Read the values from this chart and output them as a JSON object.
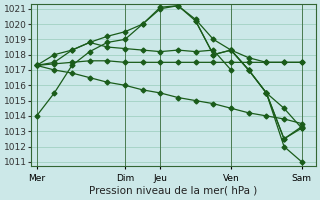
{
  "background_color": "#cce8e8",
  "grid_color": "#99ccbb",
  "line_color": "#1a5c1a",
  "ylabel_min": 1011,
  "ylabel_max": 1021,
  "xlabel": "Pression niveau de la mer( hPa )",
  "xtick_labels": [
    "Mer",
    "Dim",
    "Jeu",
    "Ven",
    "Sam"
  ],
  "xtick_positions": [
    0,
    5,
    7,
    11,
    15
  ],
  "vert_lines_x": [
    0,
    5,
    7,
    11,
    15
  ],
  "xlim": [
    -0.3,
    15.8
  ],
  "series": [
    {
      "x": [
        0,
        1,
        2,
        3,
        4,
        5,
        6,
        7,
        8,
        9,
        10,
        11,
        12,
        13,
        14,
        15
      ],
      "y": [
        1017.3,
        1017.4,
        1017.5,
        1017.6,
        1017.6,
        1017.5,
        1017.5,
        1017.5,
        1017.5,
        1017.5,
        1017.5,
        1017.5,
        1017.5,
        1017.5,
        1017.5,
        1017.5
      ]
    },
    {
      "x": [
        0,
        1,
        2,
        3,
        4,
        5,
        6,
        7,
        8,
        9,
        10,
        11,
        12,
        13,
        14,
        15
      ],
      "y": [
        1017.3,
        1017.0,
        1016.8,
        1016.5,
        1016.2,
        1016.0,
        1015.7,
        1015.5,
        1015.2,
        1015.0,
        1014.8,
        1014.5,
        1014.2,
        1014.0,
        1013.8,
        1013.5
      ]
    },
    {
      "x": [
        0,
        1,
        2,
        3,
        4,
        5,
        6,
        7,
        8,
        9,
        10,
        11
      ],
      "y": [
        1017.3,
        1017.5,
        1018.3,
        1018.8,
        1018.5,
        1018.4,
        1018.3,
        1018.2,
        1018.3,
        1018.2,
        1018.3,
        1017.0
      ]
    },
    {
      "x": [
        0,
        1,
        2,
        3,
        4,
        5,
        6,
        7,
        8,
        9,
        10,
        11,
        12,
        13,
        14,
        15
      ],
      "y": [
        1014.0,
        1015.5,
        1017.3,
        1018.2,
        1018.8,
        1019.0,
        1020.0,
        1021.0,
        1021.2,
        1020.3,
        1019.0,
        1018.3,
        1017.8,
        1017.5,
        1017.5,
        1017.5
      ]
    },
    {
      "x": [
        0,
        1,
        2,
        3,
        4,
        5,
        6,
        7,
        8,
        9,
        10,
        11,
        12,
        13,
        14,
        15
      ],
      "y": [
        1017.3,
        1018.0,
        1018.3,
        1018.8,
        1019.2,
        1019.5,
        1020.0,
        1021.1,
        1021.2,
        1020.2,
        1018.0,
        1018.3,
        1017.0,
        1015.5,
        1014.5,
        1013.2
      ]
    },
    {
      "x": [
        9,
        10,
        11,
        12,
        13,
        14,
        15
      ],
      "y": [
        1020.2,
        1018.0,
        1018.3,
        1017.0,
        1015.5,
        1012.5,
        1013.2
      ]
    },
    {
      "x": [
        11,
        12,
        13,
        14,
        15
      ],
      "y": [
        1018.3,
        1017.0,
        1015.5,
        1012.0,
        1011.0
      ]
    },
    {
      "x": [
        13,
        14,
        15
      ],
      "y": [
        1015.5,
        1012.5,
        1013.3
      ]
    }
  ],
  "axis_fontsize": 7.5,
  "tick_fontsize": 6.5
}
